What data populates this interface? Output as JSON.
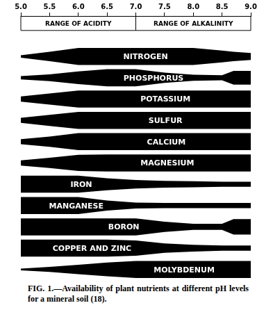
{
  "chart_data": {
    "type": "area",
    "title": "FIG. 1.—Availability of plant nutrients at different pH levels for a mineral soil (18).",
    "x": [
      5.0,
      5.5,
      6.0,
      6.5,
      7.0,
      7.5,
      8.0,
      8.5,
      8.7,
      9.0
    ],
    "xlim": [
      5,
      9
    ],
    "xticks": [
      {
        "value": 5,
        "label": "5.0"
      },
      {
        "value": 5.5,
        "label": "5.5"
      },
      {
        "value": 6,
        "label": "6.0"
      },
      {
        "value": 6.5,
        "label": "6.5"
      },
      {
        "value": 7,
        "label": "7.0"
      },
      {
        "value": 7.5,
        "label": "7.5"
      },
      {
        "value": 8,
        "label": "8.0"
      },
      {
        "value": 8.5,
        "label": "8.5"
      },
      {
        "value": 9,
        "label": "9.0"
      }
    ],
    "grid": false,
    "tick_labels": "x",
    "annotations": [
      {
        "text": "RANGE OF ACIDITY",
        "x": [
          5,
          7
        ]
      },
      {
        "text": "RANGE OF ALKALINITY",
        "x": [
          7,
          9
        ]
      }
    ],
    "series": [
      {
        "name": "NITROGEN",
        "color": "#000000",
        "values": [
          0.15,
          0.55,
          1,
          1,
          1,
          1,
          1,
          0.7,
          0.55,
          0.4
        ]
      },
      {
        "name": "PHOSPHORUS",
        "color": "#000000",
        "values": [
          0.2,
          0.4,
          0.75,
          1,
          1,
          0.6,
          0.35,
          0.3,
          0.8,
          0.8
        ]
      },
      {
        "name": "POTASSIUM",
        "color": "#000000",
        "values": [
          0.3,
          0.65,
          1,
          1,
          1,
          1,
          1,
          1,
          1,
          1
        ]
      },
      {
        "name": "SULFUR",
        "color": "#000000",
        "values": [
          0.3,
          0.65,
          1,
          1,
          1,
          1,
          1,
          1,
          1,
          1
        ]
      },
      {
        "name": "CALCIUM",
        "color": "#000000",
        "values": [
          0.3,
          0.6,
          1,
          1,
          1,
          1,
          1,
          1,
          1,
          1
        ]
      },
      {
        "name": "MAGNESIUM",
        "color": "#000000",
        "values": [
          0.3,
          0.6,
          0.95,
          1,
          1,
          1,
          1,
          1,
          1,
          1
        ]
      },
      {
        "name": "IRON",
        "color": "#000000",
        "values": [
          1,
          1,
          1,
          0.7,
          0.5,
          0.4,
          0.35,
          0.3,
          0.3,
          0.3
        ]
      },
      {
        "name": "MANGANESE",
        "color": "#000000",
        "values": [
          1,
          1,
          1,
          0.6,
          0.35,
          0.3,
          0.3,
          0.3,
          0.3,
          0.3
        ]
      },
      {
        "name": "BORON",
        "color": "#000000",
        "values": [
          1,
          1,
          1,
          1,
          1,
          0.6,
          0.35,
          0.35,
          0.9,
          0.9
        ]
      },
      {
        "name": "COPPER AND ZINC",
        "color": "#000000",
        "values": [
          1,
          1,
          1,
          1,
          0.9,
          0.55,
          0.4,
          0.3,
          0.3,
          0.3
        ]
      },
      {
        "name": "MOLYBDENUM",
        "color": "#000000",
        "values": [
          0.1,
          0.3,
          0.55,
          0.8,
          1,
          1,
          1,
          1,
          1,
          1
        ]
      }
    ]
  }
}
